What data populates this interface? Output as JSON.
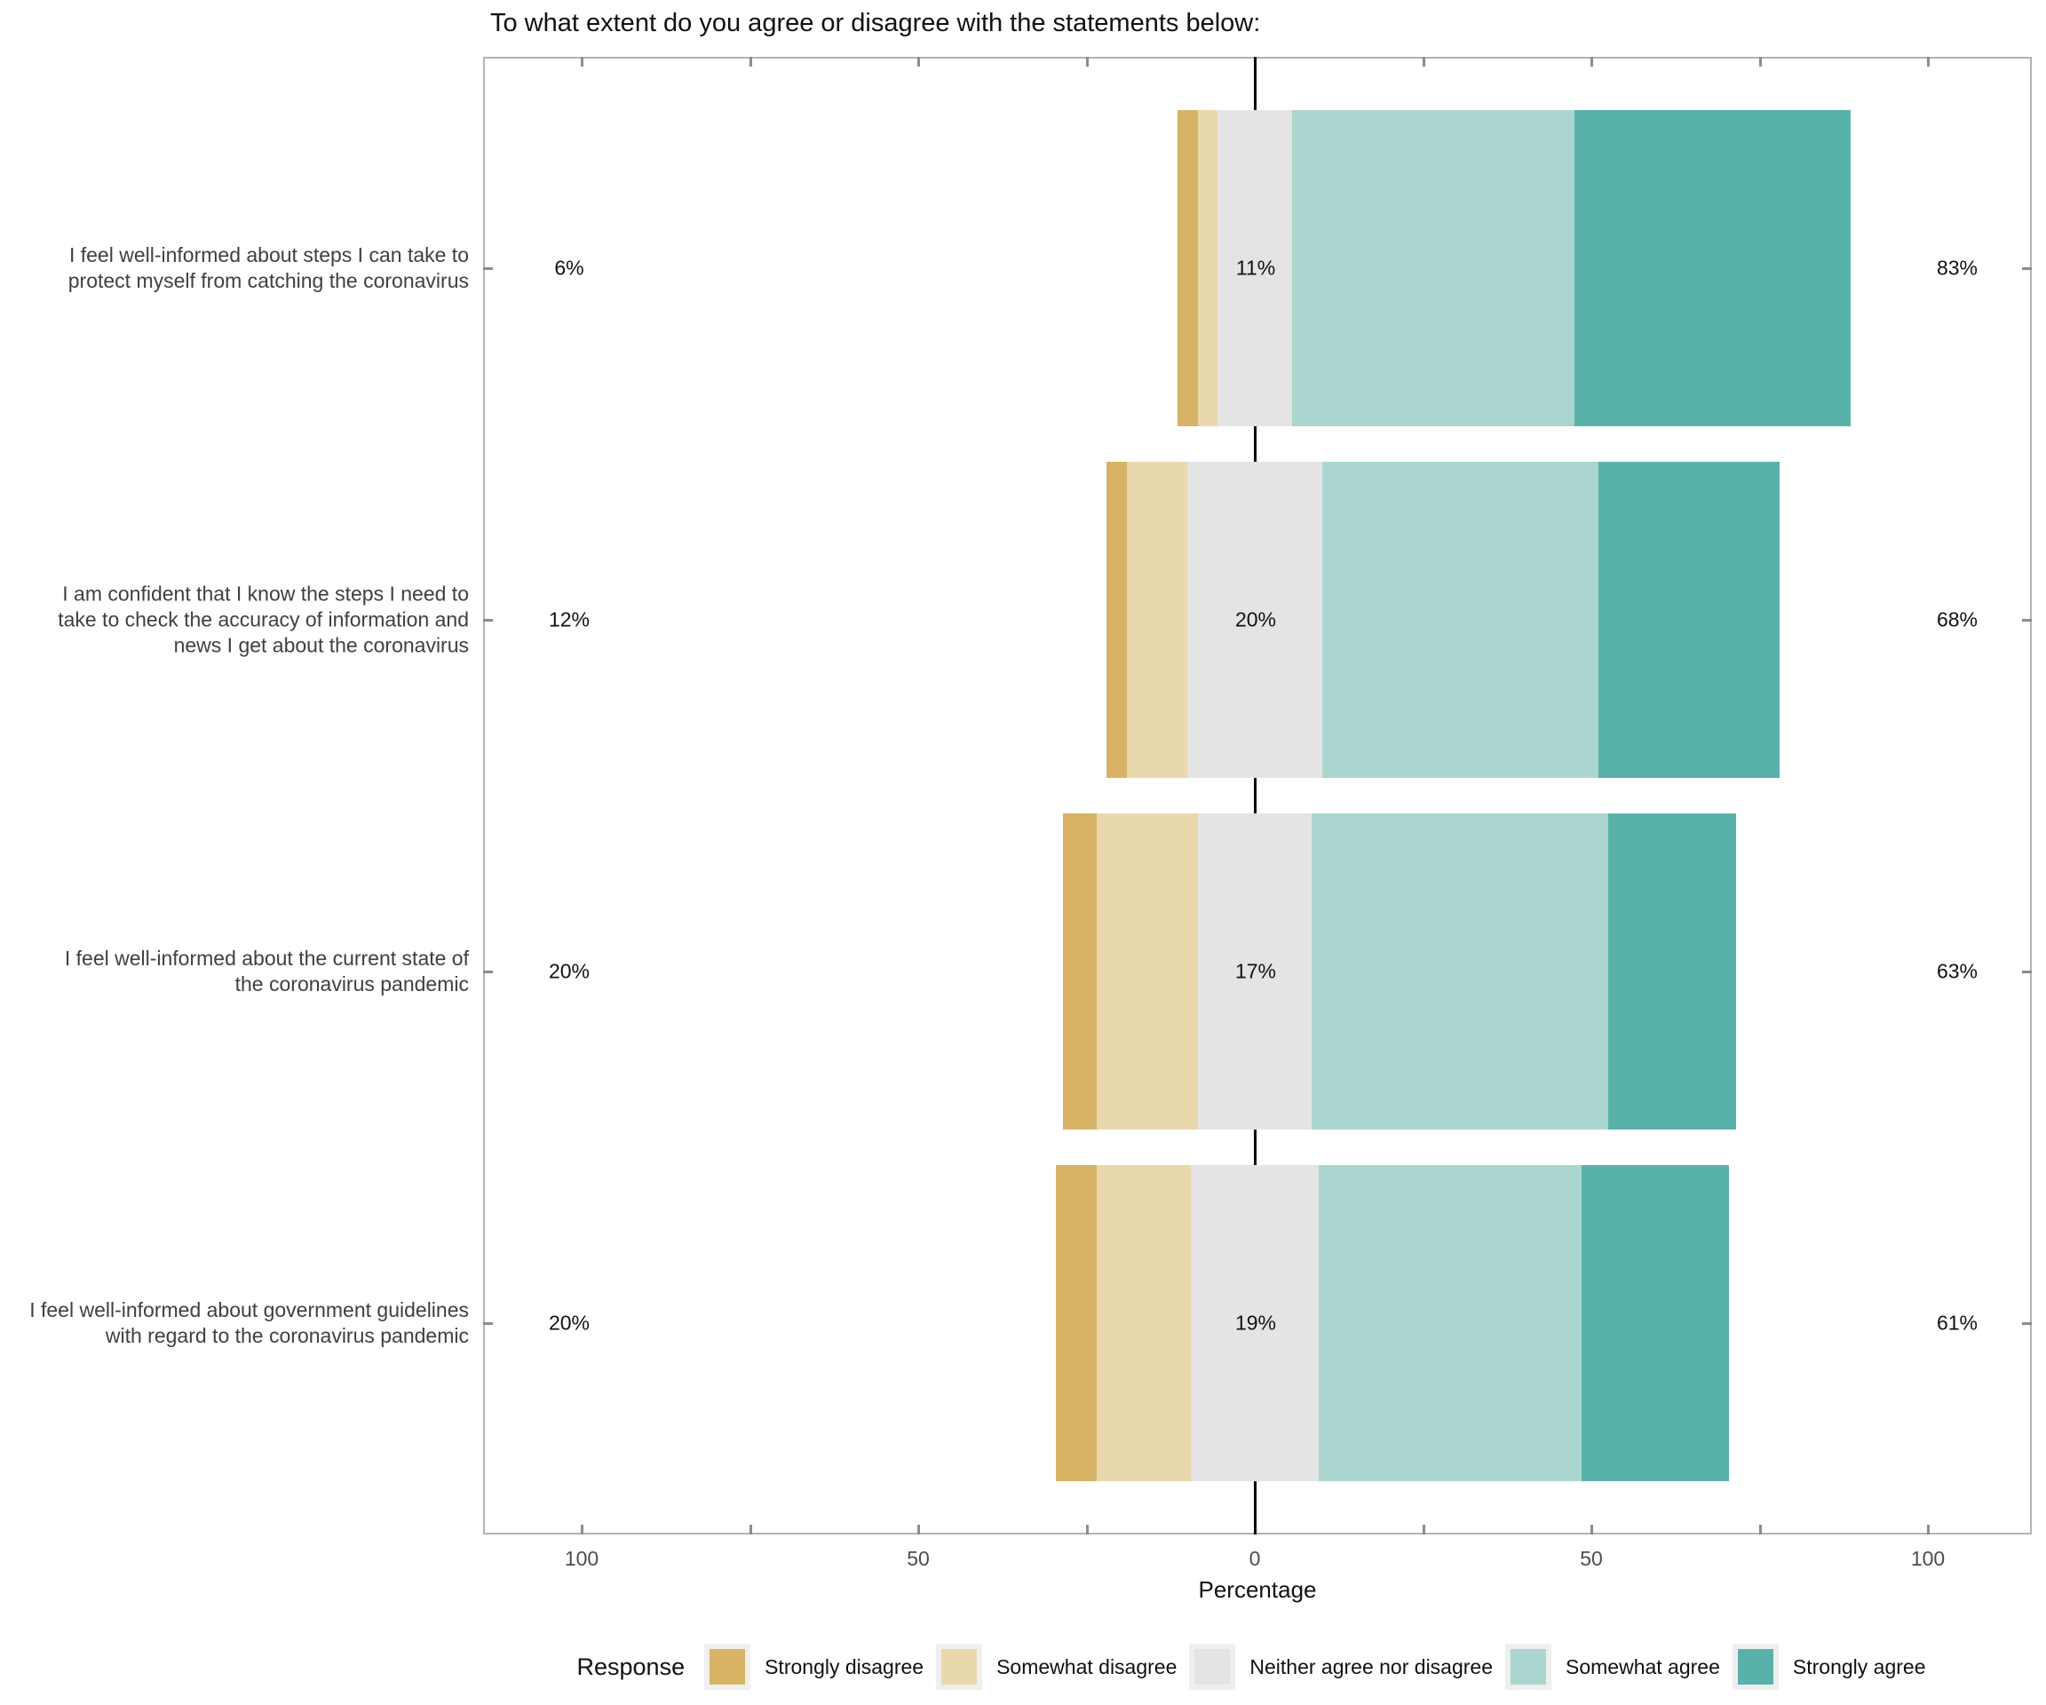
{
  "title": "To what extent do you agree or disagree with the statements below:",
  "x_axis": {
    "label": "Percentage",
    "tick_labels": [
      "100",
      "50",
      "0",
      "50",
      "100"
    ]
  },
  "legend": {
    "title": "Response"
  },
  "chart_data": {
    "type": "bar",
    "variant": "horizontal-diverging-stacked-likert",
    "title": "To what extent do you agree or disagree with the statements below:",
    "xlabel": "Percentage",
    "xlim": [
      -110,
      115
    ],
    "x_ticks": [
      -100,
      -50,
      0,
      50,
      100
    ],
    "x_tick_labels": [
      "100",
      "50",
      "0",
      "50",
      "100"
    ],
    "neutral_centered_on_zero": true,
    "legend_title": "Response",
    "legend_position": "bottom",
    "grid": "tick notches at every 25 units on top and bottom panel borders; black vertical line at 0",
    "categories": [
      "I feel well-informed about steps I can take to protect myself from catching the coronavirus",
      "I am confident that I know the steps I need to take to check the accuracy of information and news I get about the coronavirus",
      "I feel well-informed about the current state of the coronavirus pandemic",
      "I feel well-informed about government guidelines with regard to the coronavirus pandemic"
    ],
    "categories_lines": [
      [
        "I feel well-informed about steps I can take to",
        "protect myself from catching the coronavirus"
      ],
      [
        "I am confident that I know the steps I need to",
        "take to check the accuracy of information and",
        "news I get about the coronavirus"
      ],
      [
        "I feel well-informed about the current state of",
        "the coronavirus pandemic"
      ],
      [
        "I feel well-informed about government guidelines",
        "with regard to the coronavirus pandemic"
      ]
    ],
    "series": [
      {
        "name": "Strongly disagree",
        "color": "#d8b365",
        "values": [
          3,
          3,
          5,
          6
        ]
      },
      {
        "name": "Somewhat disagree",
        "color": "#e8d8ab",
        "values": [
          3,
          9,
          15,
          14
        ]
      },
      {
        "name": "Neither agree nor disagree",
        "color": "#e4e4e4",
        "values": [
          11,
          20,
          17,
          19
        ]
      },
      {
        "name": "Somewhat agree",
        "color": "#abd6cf",
        "values": [
          42,
          41,
          44,
          39
        ]
      },
      {
        "name": "Strongly agree",
        "color": "#59b2aa",
        "values": [
          41,
          27,
          19,
          22
        ]
      }
    ],
    "totals": {
      "disagree_labels": [
        "6%",
        "12%",
        "20%",
        "20%"
      ],
      "neutral_labels": [
        "11%",
        "20%",
        "17%",
        "19%"
      ],
      "agree_labels": [
        "83%",
        "68%",
        "63%",
        "61%"
      ]
    }
  }
}
